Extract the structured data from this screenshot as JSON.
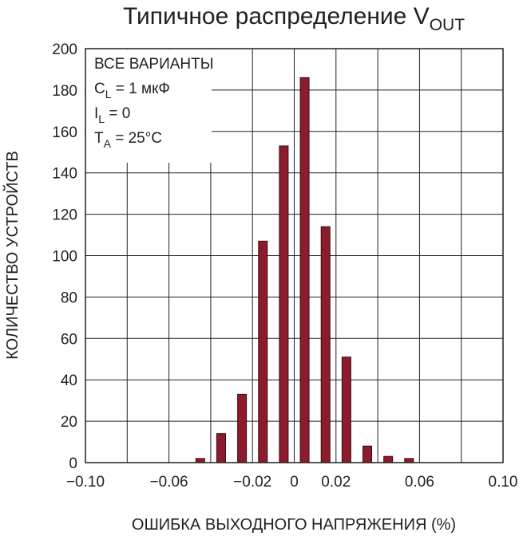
{
  "chart_data": {
    "type": "bar",
    "title": {
      "text": "Типичное распределение V",
      "sub": "OUT"
    },
    "x_label": "ОШИБКА ВЫХОДНОГО НАПРЯЖЕНИЯ (%)",
    "y_label": "КОЛИЧЕСТВО УСТРОЙСТВ",
    "x": [
      -0.045,
      -0.035,
      -0.025,
      -0.015,
      -0.005,
      0.005,
      0.015,
      0.025,
      0.035,
      0.045,
      0.055
    ],
    "values": [
      2,
      14,
      33,
      107,
      153,
      186,
      114,
      51,
      8,
      3,
      2
    ],
    "color": "#8c1c2c",
    "xlim": [
      -0.1,
      0.1
    ],
    "xticks": [
      {
        "value": -0.1,
        "label": "−0.10"
      },
      {
        "value": -0.06,
        "label": "−0.06"
      },
      {
        "value": -0.02,
        "label": "−0.02"
      },
      0,
      0.02,
      0.06,
      {
        "value": 0.1,
        "label": "0.10"
      }
    ],
    "xminor": [
      -0.08,
      -0.04,
      0.04,
      0.08
    ],
    "ylim": [
      0,
      200
    ],
    "yticks": [
      0,
      20,
      40,
      60,
      80,
      100,
      120,
      140,
      160,
      180,
      200
    ],
    "grid": true,
    "annotation": [
      {
        "text": "ВСЕ ВАРИАНТЫ"
      },
      {
        "text": "C",
        "sub": "L",
        "rest": " = 1 мкФ"
      },
      {
        "text": "I",
        "sub": "L",
        "rest": " = 0"
      },
      {
        "text": "T",
        "sub": "A",
        "rest": " = 25°C"
      }
    ]
  }
}
